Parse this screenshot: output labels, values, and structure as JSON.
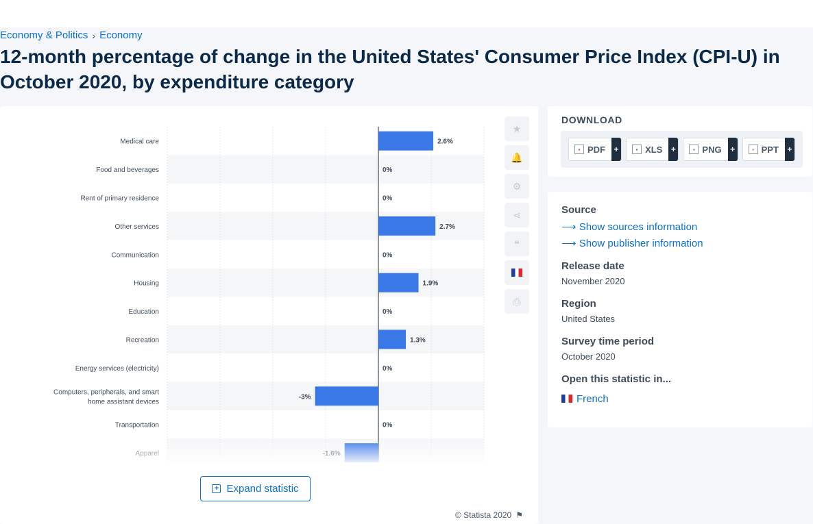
{
  "breadcrumb": {
    "items": [
      "Economy & Politics",
      "Economy"
    ],
    "separator": "›"
  },
  "page_title": "12-month percentage of change in the United States' Consumer Price Index (CPI-U) in October 2020, by expenditure category",
  "chart_data": {
    "type": "bar",
    "orientation": "horizontal",
    "title": "",
    "xlabel": "",
    "ylabel": "",
    "categories": [
      "Medical care",
      "Food and beverages",
      "Rent of primary residence",
      "Other services",
      "Communication",
      "Housing",
      "Education",
      "Recreation",
      "Energy services (electricity)",
      "Computers, peripherals, and smart home assistant devices",
      "Transportation",
      "Apparel"
    ],
    "values": [
      2.6,
      0,
      0,
      2.7,
      0,
      1.9,
      0,
      1.3,
      0,
      -3,
      0,
      -1.6
    ],
    "value_labels": [
      "2.6%",
      "0%",
      "0%",
      "2.7%",
      "0%",
      "1.9%",
      "0%",
      "1.3%",
      "0%",
      "-3%",
      "0%",
      "-1.6%"
    ],
    "xlim": [
      -10,
      5
    ],
    "grid": true,
    "bar_color": "#3b78e7"
  },
  "tools": {
    "icons": [
      "star-icon",
      "bell-icon",
      "gear-icon",
      "share-icon",
      "quote-icon",
      "french-flag-icon",
      "print-icon"
    ]
  },
  "expand_button": {
    "label": "Expand statistic"
  },
  "copyright": "© Statista 2020",
  "download": {
    "heading": "DOWNLOAD",
    "formats": [
      {
        "label": "PDF",
        "plus": "+"
      },
      {
        "label": "XLS",
        "plus": "+"
      },
      {
        "label": "PNG",
        "plus": "+"
      },
      {
        "label": "PPT",
        "plus": "+"
      }
    ]
  },
  "info": {
    "source_label": "Source",
    "show_sources": "Show sources information",
    "show_publisher": "Show publisher information",
    "release_label": "Release date",
    "release_value": "November 2020",
    "region_label": "Region",
    "region_value": "United States",
    "survey_label": "Survey time period",
    "survey_value": "October 2020",
    "open_label": "Open this statistic in...",
    "open_lang": "French"
  }
}
